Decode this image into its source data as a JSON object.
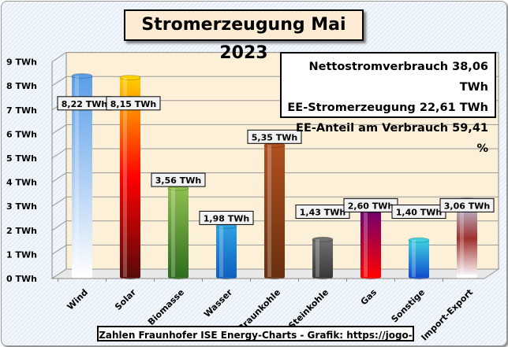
{
  "chart_data": {
    "type": "bar",
    "title": "Stromerzeugung Mai 2023",
    "categories": [
      "Wind",
      "Solar",
      "Biomasse",
      "Wasser",
      "Braunkohle",
      "Steinkohle",
      "Gas",
      "Sonstige",
      "Import-Export"
    ],
    "values": [
      8.22,
      8.15,
      3.56,
      1.98,
      5.35,
      1.43,
      2.6,
      1.4,
      3.06
    ],
    "data_labels": [
      "8,22 TWh",
      "8,15 TWh",
      "3,56 TWh",
      "1,98 TWh",
      "5,35 TWh",
      "1,43 TWh",
      "2,60 TWh",
      "1,40 TWh",
      "3,06 TWh"
    ],
    "yticks": [
      "0 TWh",
      "1 TWh",
      "2 TWh",
      "3 TWh",
      "4 TWh",
      "5 TWh",
      "6 TWh",
      "7 TWh",
      "8 TWh",
      "9 TWh"
    ],
    "ylim": [
      0,
      9
    ],
    "ylabel": "",
    "xlabel": "",
    "grid": true,
    "colors": [
      [
        "#ffffff",
        "#5a9ee8"
      ],
      [
        "#5a0a0a",
        "#ff0000",
        "#ffd000"
      ],
      [
        "#2e6e1e",
        "#8fbf50"
      ],
      [
        "#1060c0",
        "#30a0e0"
      ],
      [
        "#6a3010",
        "#b05020"
      ],
      [
        "#3a3a3a",
        "#707070"
      ],
      [
        "#ff0000",
        "#700070"
      ],
      [
        "#1050d0",
        "#40d0e0"
      ],
      [
        "#ffffff",
        "#a03030",
        "#c0d8f0"
      ]
    ]
  },
  "info": {
    "line1": "Nettostromverbrauch 38,06 TWh",
    "line2": "EE-Stromerzeugung 22,61 TWh",
    "line3": "EE-Anteil am Verbrauch 59,41 %"
  },
  "footer": "Zahlen Fraunhofer ISE  Energy-Charts - Grafik: https://jogo-gsw.com"
}
